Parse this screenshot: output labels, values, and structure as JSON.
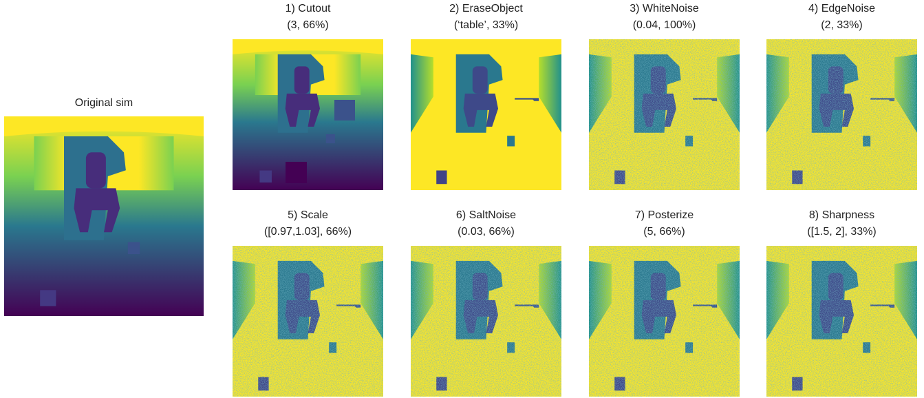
{
  "original": {
    "title": "Original sim"
  },
  "panels": [
    {
      "title": "1) Cutout",
      "params": "(3, 66%)"
    },
    {
      "title": "2) EraseObject",
      "params": "(‘table’, 33%)"
    },
    {
      "title": "3) WhiteNoise",
      "params": "(0.04, 100%)"
    },
    {
      "title": "4) EdgeNoise",
      "params": "(2, 33%)"
    },
    {
      "title": "5) Scale",
      "params": "([0.97,1.03], 66%)"
    },
    {
      "title": "6) SaltNoise",
      "params": "(0.03, 66%)"
    },
    {
      "title": "7) Posterize",
      "params": "(5, 66%)"
    },
    {
      "title": "8) Sharpness",
      "params": "([1.5, 2], 33%)"
    }
  ]
}
